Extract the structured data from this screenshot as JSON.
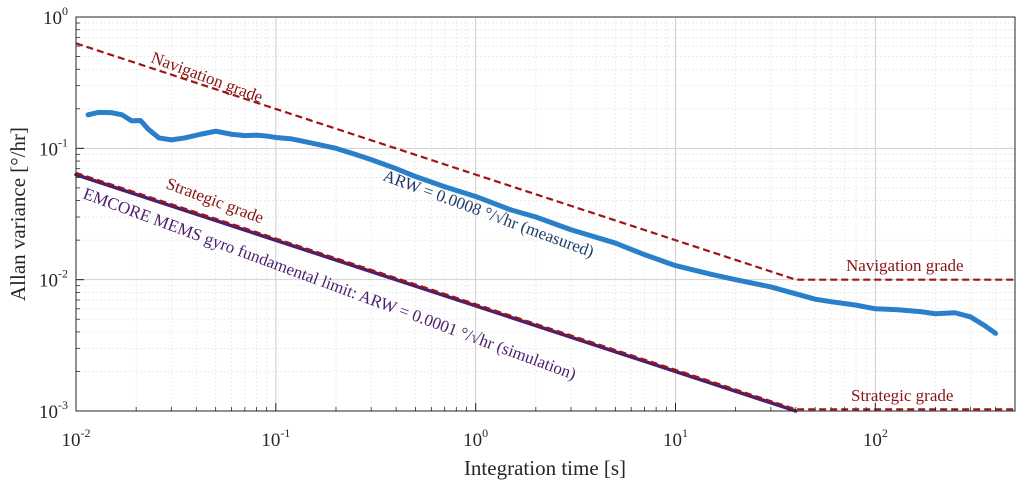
{
  "chart_data": {
    "type": "line",
    "xlabel": "Integration time [s]",
    "ylabel": "Allan variance [°/hr]",
    "x_scale": "log",
    "y_scale": "log",
    "xlim": [
      0.01,
      500
    ],
    "ylim": [
      0.001,
      1
    ],
    "grid": true,
    "x_ticks": [
      {
        "base": "10",
        "exp": "-2",
        "value": 0.01
      },
      {
        "base": "10",
        "exp": "-1",
        "value": 0.1
      },
      {
        "base": "10",
        "exp": "0",
        "value": 1
      },
      {
        "base": "10",
        "exp": "1",
        "value": 10
      },
      {
        "base": "10",
        "exp": "2",
        "value": 100
      }
    ],
    "y_ticks": [
      {
        "base": "10",
        "exp": "-3",
        "value": 0.001
      },
      {
        "base": "10",
        "exp": "-2",
        "value": 0.01
      },
      {
        "base": "10",
        "exp": "-1",
        "value": 0.1
      },
      {
        "base": "10",
        "exp": "0",
        "value": 1
      }
    ],
    "series": [
      {
        "key": "measured",
        "color": "#2a7fc9",
        "style": "solid",
        "x": [
          0.0115,
          0.013,
          0.015,
          0.017,
          0.019,
          0.021,
          0.023,
          0.026,
          0.03,
          0.035,
          0.042,
          0.05,
          0.06,
          0.07,
          0.08,
          0.09,
          0.1,
          0.12,
          0.15,
          0.2,
          0.25,
          0.3,
          0.4,
          0.5,
          0.7,
          1.0,
          1.5,
          2.0,
          3.0,
          5.0,
          7.0,
          10.0,
          15.0,
          20.0,
          30.0,
          40.0,
          50.0,
          60.0,
          80.0,
          100.0,
          130.0,
          170.0,
          200.0,
          250.0,
          300.0,
          350.0,
          400.0
        ],
        "y": [
          0.18,
          0.188,
          0.187,
          0.18,
          0.162,
          0.163,
          0.14,
          0.12,
          0.116,
          0.12,
          0.128,
          0.135,
          0.128,
          0.125,
          0.126,
          0.124,
          0.121,
          0.118,
          0.11,
          0.1,
          0.09,
          0.082,
          0.07,
          0.061,
          0.051,
          0.043,
          0.034,
          0.03,
          0.024,
          0.019,
          0.0155,
          0.0128,
          0.011,
          0.01,
          0.0088,
          0.0078,
          0.0071,
          0.0068,
          0.0064,
          0.006,
          0.0059,
          0.0057,
          0.0055,
          0.0056,
          0.0052,
          0.0045,
          0.0039
        ]
      },
      {
        "key": "fundamental-limit",
        "color": "#4b1f6b",
        "style": "solid",
        "x": [
          0.01,
          40.0
        ],
        "y": [
          0.063,
          0.001
        ]
      },
      {
        "key": "navigation-grade",
        "color": "#9e1616",
        "style": "dashed",
        "x": [
          0.01,
          40.0,
          500.0
        ],
        "y": [
          0.63,
          0.01,
          0.01
        ]
      },
      {
        "key": "strategic-grade",
        "color": "#9e1616",
        "style": "dashed",
        "x": [
          0.01,
          40.0,
          500.0
        ],
        "y": [
          0.065,
          0.00103,
          0.00103
        ]
      }
    ],
    "annotations": [
      {
        "key": "nav-grade-upper",
        "text": "Navigation grade",
        "color": "#8a1313"
      },
      {
        "key": "nav-grade-right",
        "text": "Navigation grade",
        "color": "#8a1313"
      },
      {
        "key": "strat-grade-upper",
        "text": "Strategic grade",
        "color": "#8a1313"
      },
      {
        "key": "strat-grade-right",
        "text": "Strategic grade",
        "color": "#8a1313"
      },
      {
        "key": "arw-measured",
        "text": "ARW = 0.0008 °/√hr (measured)",
        "color": "#1f3a68"
      },
      {
        "key": "arw-simulation",
        "text": "EMCORE MEMS gyro fundamental limit: ARW = 0.0001 °/√hr (simulation)",
        "color": "#4b1f6b"
      }
    ]
  }
}
